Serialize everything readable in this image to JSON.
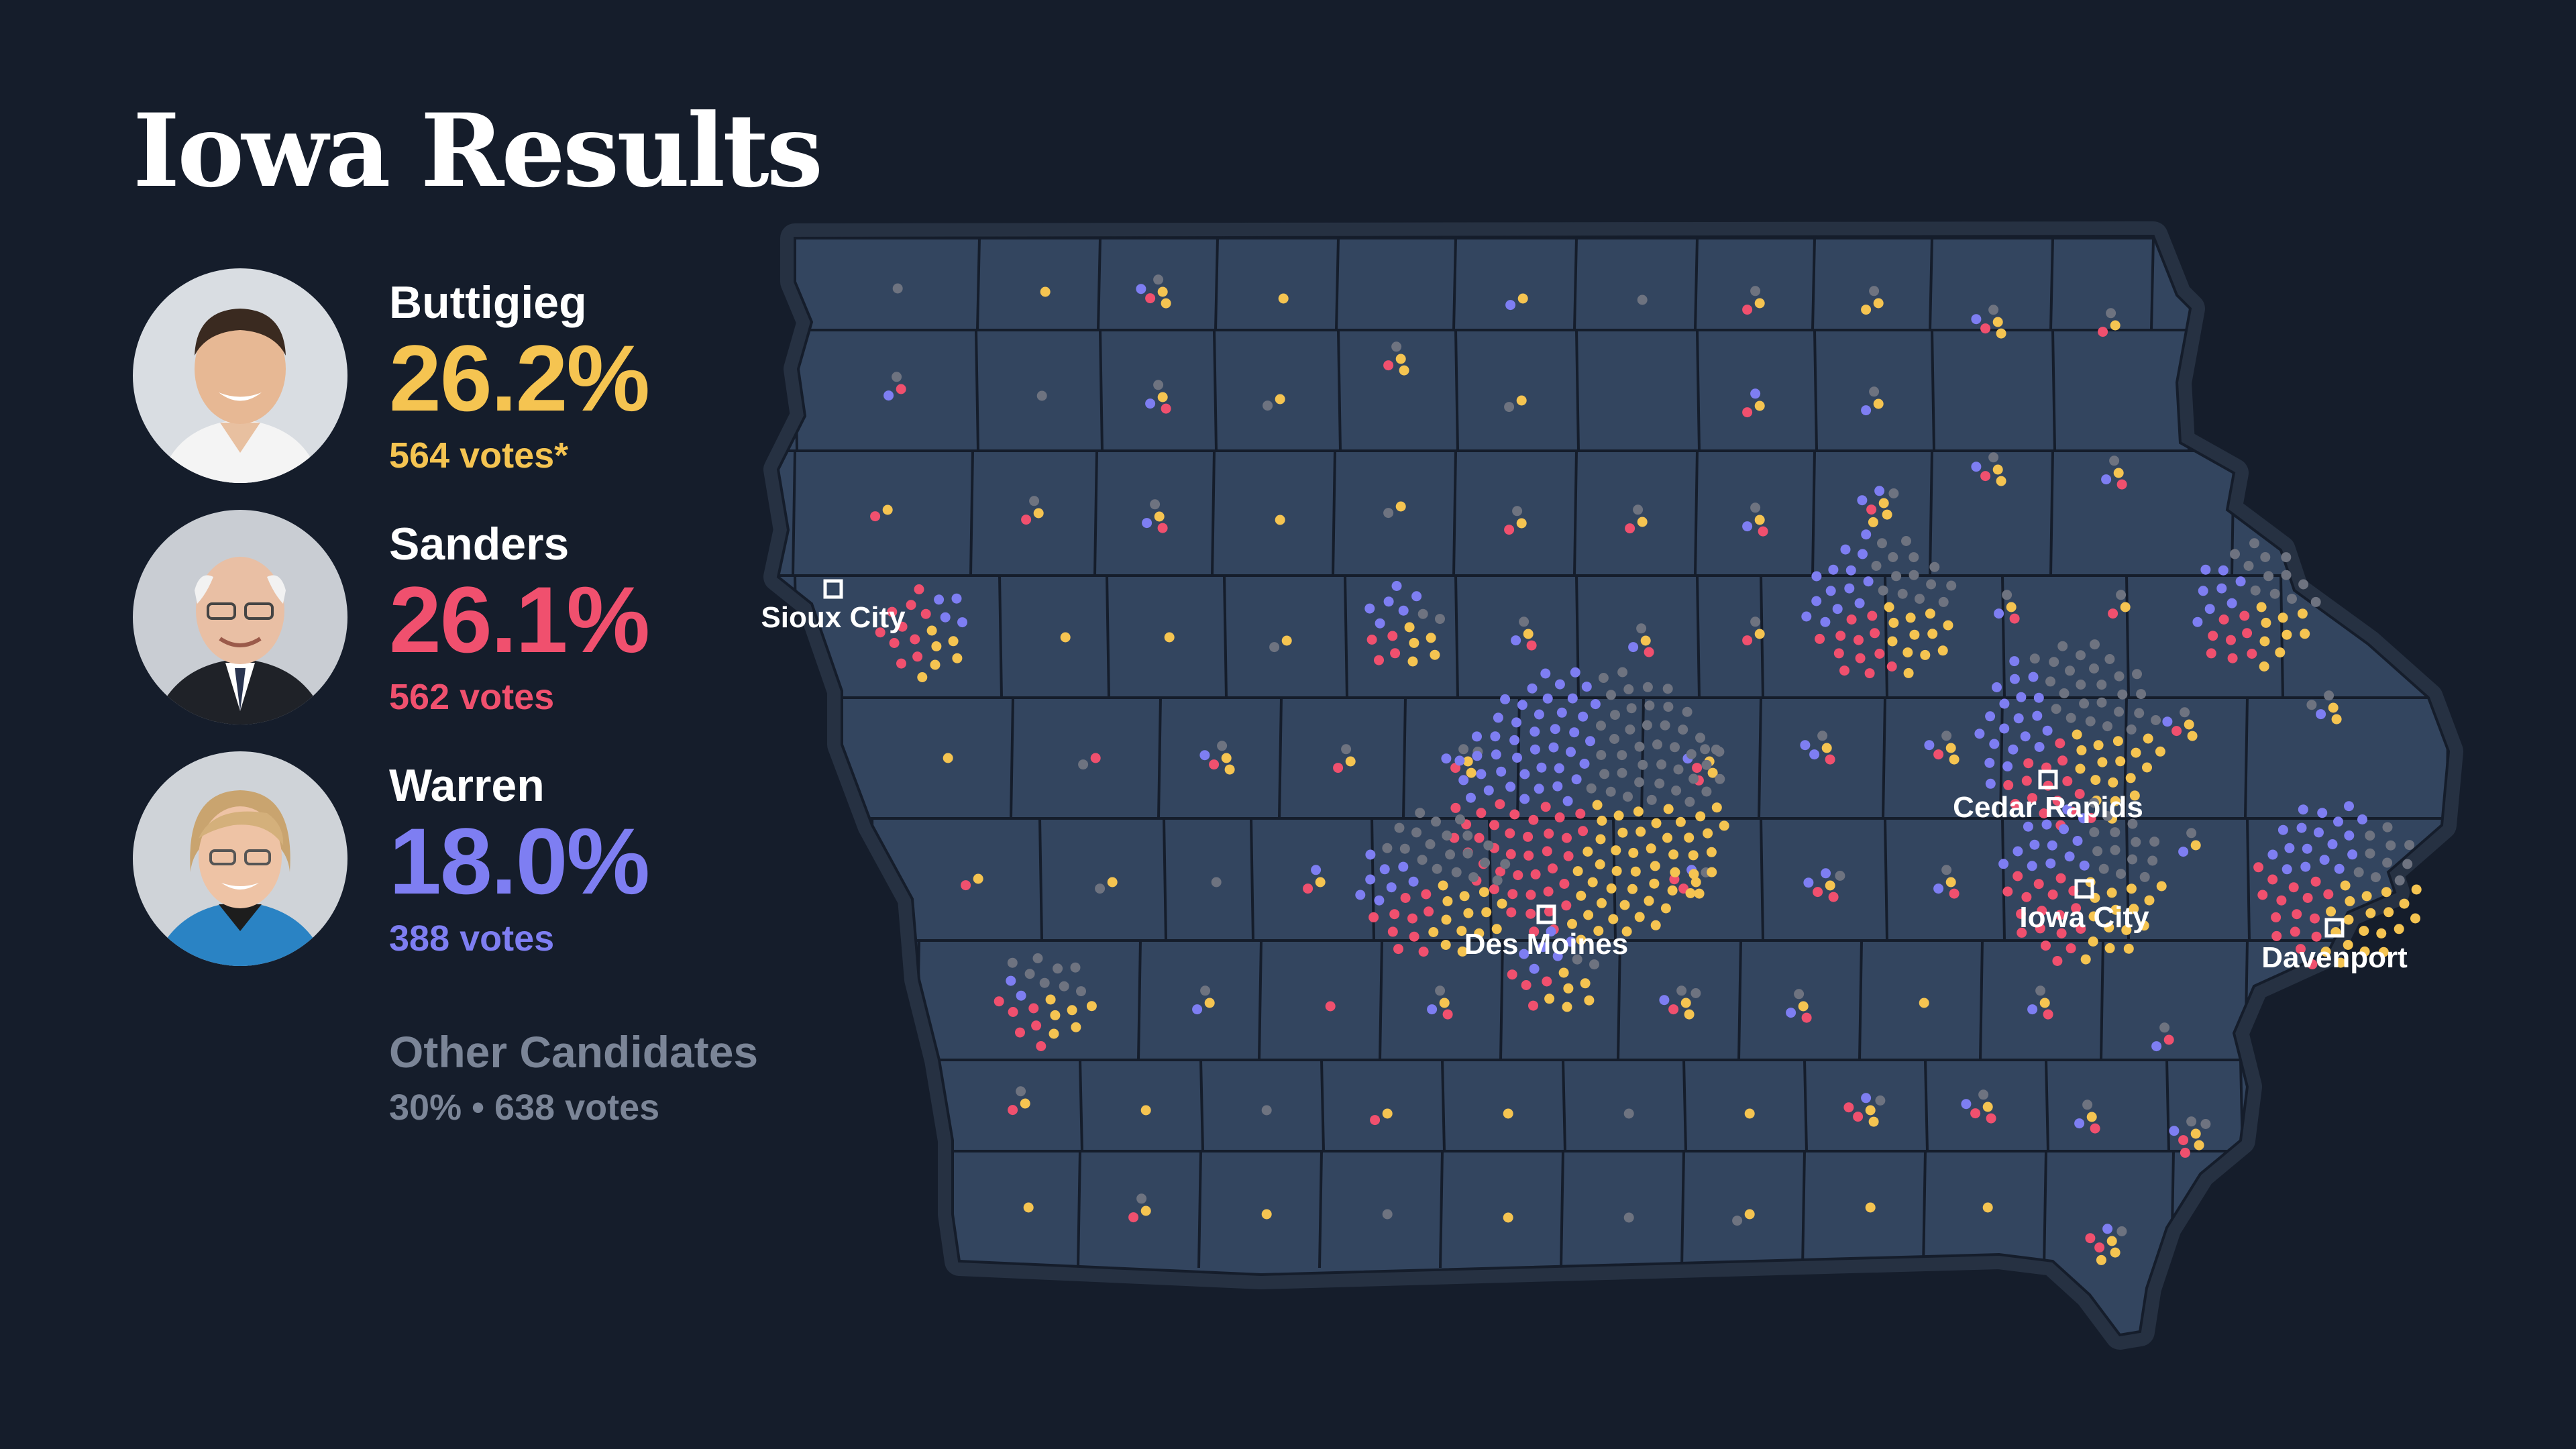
{
  "title": "Iowa Results",
  "colors": {
    "buttigieg": "#f5c451",
    "sanders": "#f0506e",
    "warren": "#7e7ef2",
    "other": "#6e7380",
    "county_fill": "#33455f",
    "county_stroke": "#151d2b",
    "background": "#151d2b"
  },
  "candidates": [
    {
      "name": "Buttigieg",
      "pct": "26.2%",
      "votes": "564 votes*",
      "color": "#f5c451",
      "photo": "buttigieg-portrait"
    },
    {
      "name": "Sanders",
      "pct": "26.1%",
      "votes": "562 votes",
      "color": "#f0506e",
      "photo": "sanders-portrait"
    },
    {
      "name": "Warren",
      "pct": "18.0%",
      "votes": "388 votes",
      "color": "#7e7ef2",
      "photo": "warren-portrait"
    }
  ],
  "others": {
    "label": "Other Candidates",
    "summary": "30% • 638 votes"
  },
  "map": {
    "cities": [
      {
        "name": "Sioux City"
      },
      {
        "name": "Des Moines"
      },
      {
        "name": "Cedar Rapids"
      },
      {
        "name": "Iowa City"
      },
      {
        "name": "Davenport"
      }
    ]
  }
}
